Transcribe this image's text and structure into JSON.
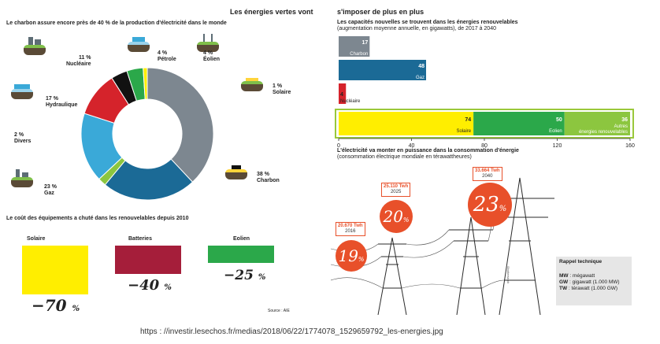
{
  "header": {
    "title_left": "Les énergies vertes vont",
    "title_right": "s'imposer de plus en plus"
  },
  "donut": {
    "title": "Le charbon assure encore près de 40 % de la production d'électricité dans le monde",
    "items": [
      {
        "pct": "11 %",
        "name": "Nucléaire"
      },
      {
        "pct": "4 %",
        "name": "Pétrole"
      },
      {
        "pct": "4 %",
        "name": "Éolien"
      },
      {
        "pct": "1 %",
        "name": "Solaire"
      },
      {
        "pct": "17 %",
        "name": "Hydraulique"
      },
      {
        "pct": "2 %",
        "name": "Divers"
      },
      {
        "pct": "23 %",
        "name": "Gaz"
      },
      {
        "pct": "38 %",
        "name": "Charbon"
      }
    ]
  },
  "costs": {
    "title": "Le coût des équipements a chuté dans les renouvelables depuis 2010",
    "items": [
      {
        "name": "Solaire",
        "value": "−70",
        "unit": "%",
        "color": "#ffee00"
      },
      {
        "name": "Batteries",
        "value": "−40",
        "unit": "%",
        "color": "#a51e3a"
      },
      {
        "name": "Eolien",
        "value": "−25",
        "unit": "%",
        "color": "#2ba84a"
      }
    ],
    "source": "Source : AIE"
  },
  "capacity": {
    "title": "Les capacités nouvelles se trouvent dans les énergies renouvelables",
    "subtitle": "(augmentation moyenne annuelle, en gigawatts), de 2017 à 2040",
    "ticks": [
      "0",
      "40",
      "80",
      "120",
      "160"
    ]
  },
  "consumption": {
    "title": "L'électricité va monter en puissance dans la consommation d'énergie",
    "subtitle": "(consommation électrique mondiale en térawattheures)",
    "items": [
      {
        "twh": "20.670 Twh",
        "year": "2016",
        "pct": "19",
        "sym": "%"
      },
      {
        "twh": "25.110 Twh",
        "year": "2025",
        "pct": "20",
        "sym": "%"
      },
      {
        "twh": "33.664 Twh",
        "year": "2040",
        "pct": "23",
        "sym": "%"
      }
    ],
    "credit": "Shutterstock"
  },
  "rappel": {
    "title": "Rappel technique",
    "lines": [
      {
        "abbr": "MW",
        "text": " : mégawatt"
      },
      {
        "abbr": "GW",
        "text": " : gigawatt (1.000 MW)"
      },
      {
        "abbr": "TW",
        "text": " : térawatt (1.000 GW)"
      }
    ]
  },
  "url": "https : //investir.lesechos.fr/medias/2018/06/22/1774078_1529659792_les-energies.jpg",
  "chart_data": [
    {
      "type": "pie",
      "title": "Le charbon assure encore près de 40 % de la production d'électricité dans le monde",
      "categories": [
        "Charbon",
        "Gaz",
        "Divers",
        "Hydraulique",
        "Nucléaire",
        "Pétrole",
        "Éolien",
        "Solaire"
      ],
      "values": [
        38,
        23,
        2,
        17,
        11,
        4,
        4,
        1
      ],
      "colors": [
        "#7d8790",
        "#1b6a96",
        "#8cc63f",
        "#3aa9d8",
        "#d5232b",
        "#111111",
        "#2ba84a",
        "#ffee00"
      ]
    },
    {
      "type": "bar",
      "title": "Les capacités nouvelles se trouvent dans les énergies renouvelables",
      "categories": [
        "Charbon",
        "Gaz",
        "Nucléaire"
      ],
      "values": [
        17,
        48,
        4
      ],
      "colors": [
        "#7d8790",
        "#1b6a96",
        "#d5232b"
      ],
      "stacked": {
        "categories": [
          "Solaire",
          "Eolien",
          "Autres énergies renouvelables"
        ],
        "values": [
          74,
          50,
          36
        ],
        "colors": [
          "#ffee00",
          "#2ba84a",
          "#8cc63f"
        ]
      },
      "xlim": [
        0,
        160
      ]
    },
    {
      "type": "bar",
      "title": "Le coût des équipements a chuté dans les renouvelables depuis 2010",
      "categories": [
        "Solaire",
        "Batteries",
        "Eolien"
      ],
      "values": [
        -70,
        -40,
        -25
      ]
    }
  ]
}
